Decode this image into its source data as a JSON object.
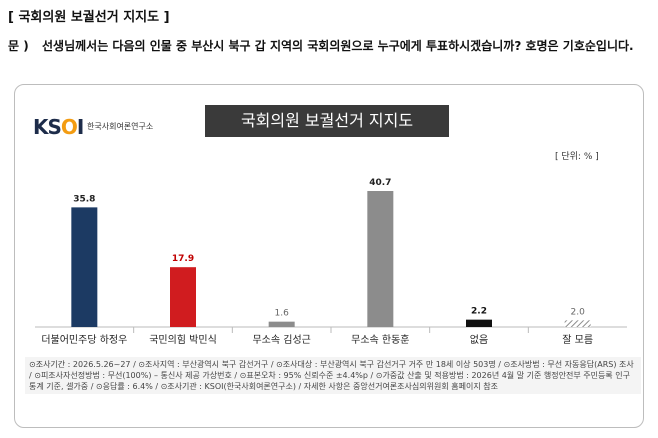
{
  "document": {
    "title": "[ 국회의원 보궐선거 지지도 ]",
    "question_mark": "문 )",
    "question_text": "선생님께서는 다음의 인물 중 부산시 북구 갑 지역의 국회의원으로 누구에게 투표하시겠습니까? 호명은 기호순입니다."
  },
  "logo": {
    "mark": "KSOI",
    "text": "한국사회여론연구소"
  },
  "unit_label": "[ 단위: % ]",
  "colors": {
    "bar_democratic": "#1c3a63",
    "bar_ppp": "#d01c1f",
    "bar_independent": "#8c8c8c",
    "bar_none": "#111111",
    "bar_unknown_hatch": "#8c8c8c",
    "value_default": "#222222",
    "value_ppp": "#c00000"
  },
  "chart_data": {
    "type": "bar",
    "title": "국회의원 보궐선거 지지도",
    "categories": [
      "더불어민주당 하정우",
      "국민의힘 박민식",
      "무소속 김성근",
      "무소속 한동훈",
      "없음",
      "잘 모름"
    ],
    "values": [
      35.8,
      17.9,
      1.6,
      40.7,
      2.2,
      2.0
    ],
    "value_labels": [
      "35.8",
      "17.9",
      "1.6",
      "40.7",
      "2.2",
      "2.0"
    ],
    "bar_colors": [
      "#1c3a63",
      "#d01c1f",
      "#8c8c8c",
      "#8c8c8c",
      "#111111",
      "#8c8c8c"
    ],
    "bar_hatched": [
      false,
      false,
      false,
      false,
      false,
      true
    ],
    "value_label_colors": [
      "#222222",
      "#c00000",
      "#666666",
      "#222222",
      "#111111",
      "#666666"
    ],
    "ylim": [
      0,
      45
    ],
    "grid": false,
    "legend": "none"
  },
  "footnote": "⊙조사기간 : 2026.5.26~27 / ⊙조사지역 : 부산광역시 북구 갑선거구 / ⊙조사대상 : 부산광역시 북구 갑선거구 거주 만 18세 이상 503명 / ⊙조사방법 : 무선 자동응답(ARS) 조사 / ⊙피조사자선정방법 : 무선(100%) – 통신사 제공 가상번호 / ⊙표본오차 : 95% 신뢰수준 ±4.4%p / ⊙가중값 산출 및 적용방법 : 2026년 4월 말 기준 행정안전부 주민등록 인구통계 기준, 셀가중 / ⊙응답률 : 6.4% / ⊙조사기관 : KSOI(한국사회여론연구소) / 자세한 사항은 중앙선거여론조사심의위원회 홈페이지 참조"
}
